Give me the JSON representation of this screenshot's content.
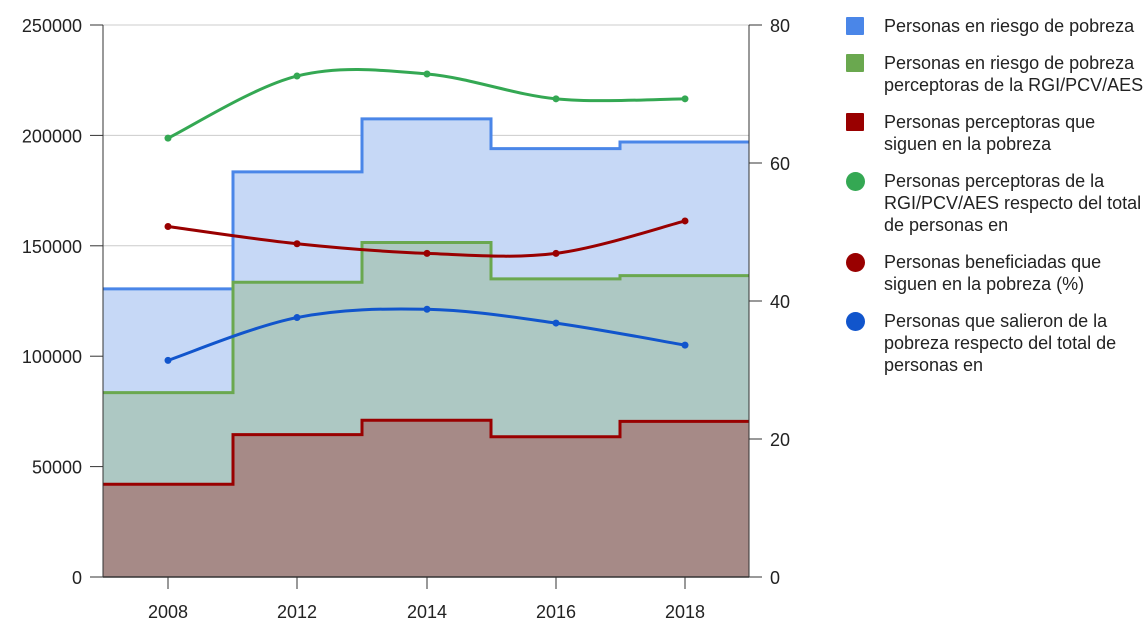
{
  "chart_data": {
    "type": "area",
    "x_categories": [
      "2008",
      "2012",
      "2014",
      "2016",
      "2018"
    ],
    "y_left": {
      "ylim": [
        0,
        250000
      ],
      "ticks": [
        "0",
        "50000",
        "100000",
        "150000",
        "200000",
        "250000"
      ]
    },
    "y_right": {
      "ylim": [
        0,
        80
      ],
      "ticks": [
        "0",
        "20",
        "40",
        "60",
        "80"
      ]
    },
    "grid": true,
    "legend_position": "right",
    "series": [
      {
        "name": "Personas en riesgo de pobreza",
        "kind": "stepped-area",
        "axis": "left",
        "color": "#4a86e8",
        "fill": "#c6d8f6",
        "marker": "square",
        "values": [
          130500,
          183500,
          207500,
          194000,
          197000
        ]
      },
      {
        "name": "Personas en riesgo de pobreza perceptoras de la RGI/PCV/AES",
        "kind": "stepped-area",
        "axis": "left",
        "color": "#6aa84f",
        "fill": "#adc8c3",
        "marker": "square",
        "values": [
          83500,
          133500,
          151500,
          135000,
          136500
        ]
      },
      {
        "name": "Personas perceptoras que siguen en la pobreza",
        "kind": "stepped-area",
        "axis": "left",
        "color": "#990000",
        "fill": "#a68a87",
        "marker": "square",
        "values": [
          42000,
          64500,
          71000,
          63500,
          70500
        ]
      },
      {
        "name": "Personas perceptoras de la RGI/PCV/AES respecto del total de personas en",
        "kind": "line",
        "axis": "right",
        "color": "#34a853",
        "marker": "circle",
        "values": [
          63.6,
          72.6,
          72.9,
          69.3,
          69.3
        ]
      },
      {
        "name": "Personas beneficiadas que siguen en la pobreza (%)",
        "kind": "line",
        "axis": "right",
        "color": "#990000",
        "marker": "circle",
        "values": [
          50.8,
          48.3,
          46.9,
          46.9,
          51.6
        ]
      },
      {
        "name": "Personas que salieron de la pobreza respecto del total de personas en",
        "kind": "line",
        "axis": "right",
        "color": "#1155cc",
        "marker": "circle",
        "values": [
          31.4,
          37.6,
          38.8,
          36.8,
          33.6
        ]
      }
    ]
  }
}
